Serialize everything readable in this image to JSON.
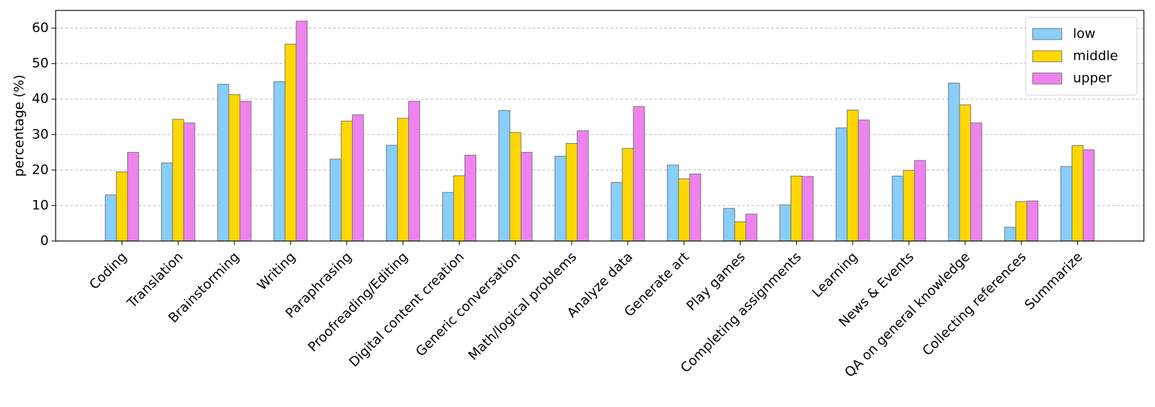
{
  "chart_data": {
    "type": "bar",
    "y_label": "percentage (%)",
    "categories": [
      "Coding",
      "Translation",
      "Brainstorming",
      "Writing",
      "Paraphrasing",
      "Proofreading/Editing",
      "Digital content creation",
      "Generic conversation",
      "Math/logical problems",
      "Analyze data",
      "Generate art",
      "Play games",
      "Completing assignments",
      "Learning",
      "News & Events",
      "QA on general knowledge",
      "Collecting references",
      "Summarize"
    ],
    "series": [
      {
        "name": "low",
        "color": "#87cefa",
        "values": [
          13,
          22,
          44.2,
          44.9,
          23.1,
          27,
          13.7,
          36.8,
          23.9,
          16.5,
          21.4,
          9.2,
          10.2,
          31.9,
          18.3,
          44.5,
          3.9,
          21
        ]
      },
      {
        "name": "middle",
        "color": "#ffd700",
        "values": [
          19.5,
          34.3,
          41.3,
          55.5,
          33.8,
          34.6,
          18.4,
          30.6,
          27.5,
          26.1,
          17.5,
          5.4,
          18.3,
          36.9,
          19.9,
          38.4,
          11.1,
          26.9
        ]
      },
      {
        "name": "upper",
        "color": "#ee82ee",
        "values": [
          25,
          33.3,
          39.4,
          62,
          35.6,
          39.4,
          24.2,
          25,
          31.1,
          37.9,
          18.9,
          7.6,
          18.2,
          34.1,
          22.7,
          33.3,
          11.3,
          25.7
        ]
      }
    ],
    "ylim": [
      0,
      65
    ],
    "yticks": [
      0,
      10,
      20,
      30,
      40,
      50,
      60
    ],
    "grid": true,
    "legend": "upper right"
  }
}
